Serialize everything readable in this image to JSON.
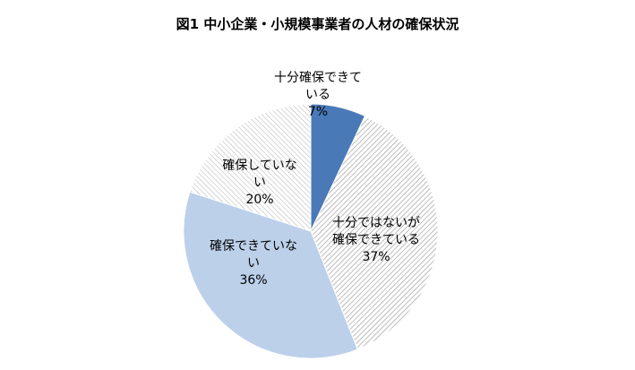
{
  "chart_data": {
    "type": "pie",
    "title": "図1 中小企業・小規模事業者の人材の確保状況",
    "categories": [
      "十分確保できている",
      "十分ではないが確保できている",
      "確保できていない",
      "確保していない"
    ],
    "values": [
      7,
      37,
      36,
      20
    ],
    "value_labels": [
      "7%",
      "37%",
      "36%",
      "20%"
    ],
    "colors": [
      "#4a79b8",
      "#9a9a9a",
      "#bcd0ea",
      "#b0b0b0"
    ],
    "hatch": [
      false,
      true,
      false,
      true
    ]
  }
}
